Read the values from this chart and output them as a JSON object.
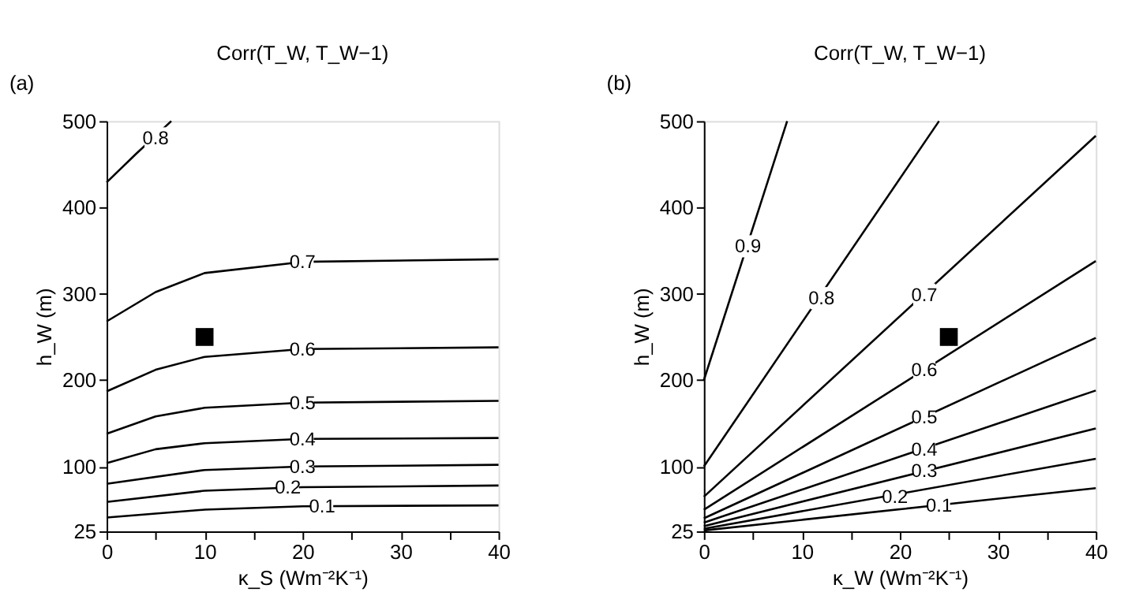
{
  "chart_data": [
    {
      "type": "line",
      "title": "Corr(T_W, T_W−1)",
      "xlabel": "κ_S (Wm⁻²K⁻¹)",
      "ylabel": "h_W (m)",
      "xlim": [
        0,
        40
      ],
      "ylim": [
        25,
        500
      ],
      "xticks": [
        0,
        {
          "value": 5,
          "label": null
        },
        10,
        {
          "value": 15,
          "label": null
        },
        20,
        {
          "value": 25,
          "label": null
        },
        30,
        {
          "value": 35,
          "label": null
        },
        40
      ],
      "yticks": [
        25,
        100,
        200,
        300,
        400,
        500
      ],
      "grid": false,
      "line_style": "solid",
      "marker": "none",
      "series": [
        {
          "color": "#000000",
          "x": [
            0,
            3,
            6.6
          ],
          "values": [
            429,
            462,
            500
          ]
        },
        {
          "color": "#000000",
          "x": [
            0,
            5,
            10,
            20,
            40
          ],
          "values": [
            268,
            302,
            324,
            337,
            340
          ]
        },
        {
          "color": "#000000",
          "x": [
            0,
            5,
            10,
            20,
            40
          ],
          "values": [
            187,
            212,
            227,
            236,
            238
          ]
        },
        {
          "color": "#000000",
          "x": [
            0,
            5,
            10,
            20,
            40
          ],
          "values": [
            138,
            158,
            168,
            174,
            176
          ]
        },
        {
          "color": "#000000",
          "x": [
            0,
            5,
            10,
            20,
            40
          ],
          "values": [
            104,
            120,
            127,
            132,
            133
          ]
        },
        {
          "color": "#000000",
          "x": [
            0,
            10,
            20,
            40
          ],
          "values": [
            80,
            96,
            100,
            102
          ]
        },
        {
          "color": "#000000",
          "x": [
            0,
            10,
            20,
            40
          ],
          "values": [
            59,
            72,
            76,
            78
          ]
        },
        {
          "color": "#000000",
          "x": [
            0,
            10,
            20,
            40
          ],
          "values": [
            41,
            50,
            54,
            55
          ]
        },
        {
          "type": "scatter",
          "marker": "square",
          "color": "#000000",
          "x": [
            10
          ],
          "values": [
            250
          ]
        }
      ],
      "annotations": [
        "(a)",
        {
          "text": "0.8",
          "x": 5,
          "y": 480
        },
        {
          "text": "0.7",
          "x": 20,
          "y": 337
        },
        {
          "text": "0.6",
          "x": 20,
          "y": 236
        },
        {
          "text": "0.5",
          "x": 20,
          "y": 174
        },
        {
          "text": "0.4",
          "x": 20,
          "y": 132
        },
        {
          "text": "0.3",
          "x": 20,
          "y": 100
        },
        {
          "text": "0.2",
          "x": 18.5,
          "y": 76
        },
        {
          "text": "0.1",
          "x": 22,
          "y": 54
        }
      ]
    },
    {
      "type": "line",
      "title": "Corr(T_W, T_W−1)",
      "xlabel": "κ_W (Wm⁻²K⁻¹)",
      "ylabel": "h_W (m)",
      "xlim": [
        0,
        40
      ],
      "ylim": [
        25,
        500
      ],
      "xticks": [
        0,
        {
          "value": 5,
          "label": null
        },
        10,
        {
          "value": 15,
          "label": null
        },
        20,
        {
          "value": 25,
          "label": null
        },
        30,
        {
          "value": 35,
          "label": null
        },
        40
      ],
      "yticks": [
        25,
        100,
        200,
        300,
        400,
        500
      ],
      "grid": false,
      "line_style": "solid",
      "marker": "none",
      "series": [
        {
          "color": "#000000",
          "x": [
            0,
            8.5
          ],
          "values": [
            200,
            500
          ]
        },
        {
          "color": "#000000",
          "x": [
            0,
            24
          ],
          "values": [
            100,
            500
          ]
        },
        {
          "color": "#000000",
          "x": [
            0,
            40
          ],
          "values": [
            65,
            483
          ]
        },
        {
          "color": "#000000",
          "x": [
            0,
            40
          ],
          "values": [
            50,
            338
          ]
        },
        {
          "color": "#000000",
          "x": [
            0,
            40
          ],
          "values": [
            40,
            249
          ]
        },
        {
          "color": "#000000",
          "x": [
            0,
            40
          ],
          "values": [
            35,
            188
          ]
        },
        {
          "color": "#000000",
          "x": [
            0,
            40
          ],
          "values": [
            31,
            144
          ]
        },
        {
          "color": "#000000",
          "x": [
            0,
            40
          ],
          "values": [
            28,
            109
          ]
        },
        {
          "color": "#000000",
          "x": [
            0,
            40
          ],
          "values": [
            26,
            75
          ]
        },
        {
          "type": "scatter",
          "marker": "square",
          "color": "#000000",
          "x": [
            25
          ],
          "values": [
            250
          ]
        }
      ],
      "annotations": [
        "(b)",
        {
          "text": "0.9",
          "x": 4.5,
          "y": 355
        },
        {
          "text": "0.8",
          "x": 12,
          "y": 295
        },
        {
          "text": "0.7",
          "x": 22.5,
          "y": 299
        },
        {
          "text": "0.6",
          "x": 22.5,
          "y": 212
        },
        {
          "text": "0.5",
          "x": 22.5,
          "y": 157
        },
        {
          "text": "0.4",
          "x": 22.5,
          "y": 120
        },
        {
          "text": "0.3",
          "x": 22.5,
          "y": 95
        },
        {
          "text": "0.2",
          "x": 19.5,
          "y": 65
        },
        {
          "text": "0.1",
          "x": 24,
          "y": 55
        }
      ]
    }
  ]
}
